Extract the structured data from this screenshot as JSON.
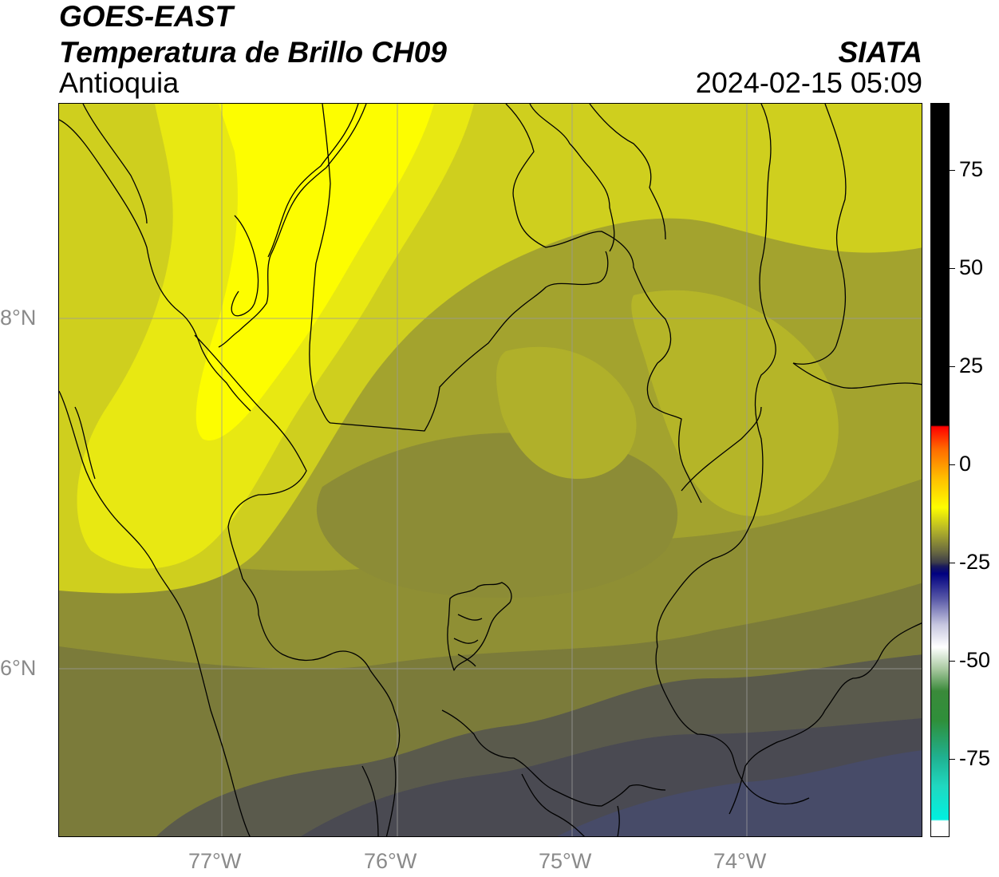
{
  "header": {
    "satellite": "GOES-EAST",
    "product": "Temperatura de Brillo CH09",
    "region": "Antioquia",
    "organization": "SIATA",
    "datetime": "2024-02-15 05:09"
  },
  "axes": {
    "lat_labels": [
      "8°N",
      "6°N"
    ],
    "lon_labels": [
      "77°W",
      "76°W",
      "75°W",
      "74°W"
    ]
  },
  "colorbar": {
    "tick_labels": [
      "75",
      "50",
      "25",
      "0",
      "-25",
      "-50",
      "-75"
    ],
    "tick_values": [
      75,
      50,
      25,
      0,
      -25,
      -50,
      -75
    ],
    "range": [
      -95,
      92
    ]
  },
  "colors": {
    "bright_yellow": "#fdfd00",
    "yellow_olive": "#cfcf1e",
    "olive": "#9a9a32",
    "dark_olive": "#7b7b3a",
    "slate": "#4a4a52",
    "indigo": "#474b68",
    "boundary": "#000000",
    "grid": "#9a9a9a"
  }
}
